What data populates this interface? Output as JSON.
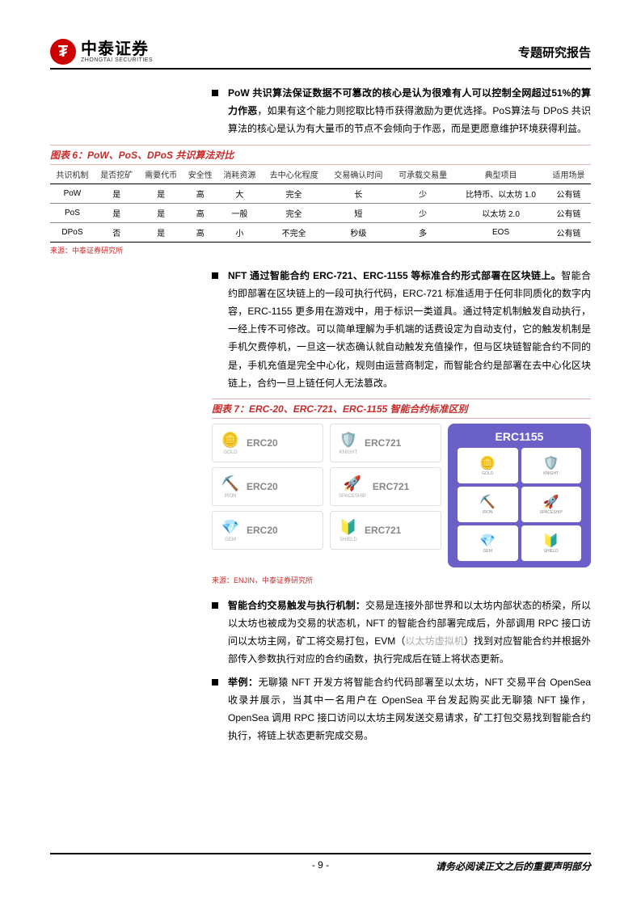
{
  "header": {
    "logo_cn": "中泰证券",
    "logo_en": "ZHONGTAI SECURITIES",
    "report_type": "专题研究报告"
  },
  "para1": {
    "lead": "PoW 共识算法保证数据不可篡改的核心是认为很难有人可以控制全网超过51%的算力作恶",
    "rest": "，如果有这个能力则挖取比特币获得激励为更优选择。PoS算法与 DPoS 共识算法的核心是认为有大量币的节点不会倾向于作恶，而是更愿意维护环境获得利益。"
  },
  "table6": {
    "title": "图表 6：PoW、PoS、DPoS 共识算法对比",
    "columns": [
      "共识机制",
      "是否挖矿",
      "需要代币",
      "安全性",
      "消耗资源",
      "去中心化程度",
      "交易确认时间",
      "可承载交易量",
      "典型项目",
      "适用场景"
    ],
    "rows": [
      [
        "PoW",
        "是",
        "是",
        "高",
        "大",
        "完全",
        "长",
        "少",
        "比特币、以太坊 1.0",
        "公有链"
      ],
      [
        "PoS",
        "是",
        "是",
        "高",
        "一般",
        "完全",
        "短",
        "少",
        "以太坊 2.0",
        "公有链"
      ],
      [
        "DPoS",
        "否",
        "是",
        "高",
        "小",
        "不完全",
        "秒级",
        "多",
        "EOS",
        "公有链"
      ]
    ],
    "source": "来源：中泰证券研究所"
  },
  "para2": {
    "lead": "NFT 通过智能合约 ERC-721、ERC-1155 等标准合约形式部署在区块链上。",
    "rest": "智能合约即部署在区块链上的一段可执行代码，ERC-721 标准适用于任何非同质化的数字内容，ERC-1155 更多用在游戏中，用于标识一类道具。通过特定机制触发自动执行，一经上传不可修改。可以简单理解为手机端的话费设定为自动支付，它的触发机制是手机欠费停机，一旦这一状态确认就自动触发充值操作，但与区块链智能合约不同的是，手机充值是完全中心化，规则由运营商制定，而智能合约是部署在去中心化区块链上，合约一旦上链任何人无法篡改。"
  },
  "figure7": {
    "title": "图表 7：ERC-20、ERC-721、ERC-1155 智能合约标准区别",
    "erc20": {
      "label": "ERC20",
      "color": "#555",
      "items": [
        "GOLD",
        "IRON",
        "GEM"
      ]
    },
    "erc721": {
      "label": "ERC721",
      "color": "#555",
      "items": [
        "KNIGHT",
        "SPACESHIP",
        "SHIELD"
      ]
    },
    "erc1155": {
      "label": "ERC1155",
      "bg": "#6b5fc8",
      "items": [
        "GOLD",
        "KNIGHT",
        "IRON",
        "SPACESHIP",
        "GEM",
        "SHIELD"
      ]
    },
    "source": "来源：ENJIN，中泰证券研究所"
  },
  "para3": {
    "lead": "智能合约交易触发与执行机制：",
    "rest": "交易是连接外部世界和以太坊内部状态的桥梁，所以以太坊也被成为交易的状态机，NFT 的智能合约部署完成后，外部调用 RPC 接口访问以太坊主网，矿工将交易打包，EVM（",
    "gray": "以太坊虚拟机",
    "rest2": "）找到对应智能合约并根据外部传入参数执行对应的合约函数，执行完成后在链上将状态更新。"
  },
  "para4": {
    "lead": "举例：",
    "rest": "无聊猿 NFT 开发方将智能合约代码部署至以太坊，NFT 交易平台 OpenSea 收录并展示，当其中一名用户在 OpenSea 平台发起购买此无聊猿 NFT 操作，OpenSea 调用 RPC 接口访问以太坊主网发送交易请求，矿工打包交易找到智能合约执行，将链上状态更新完成交易。"
  },
  "footer": {
    "page": "- 9 -",
    "notice": "请务必阅读正文之后的重要声明部分"
  }
}
